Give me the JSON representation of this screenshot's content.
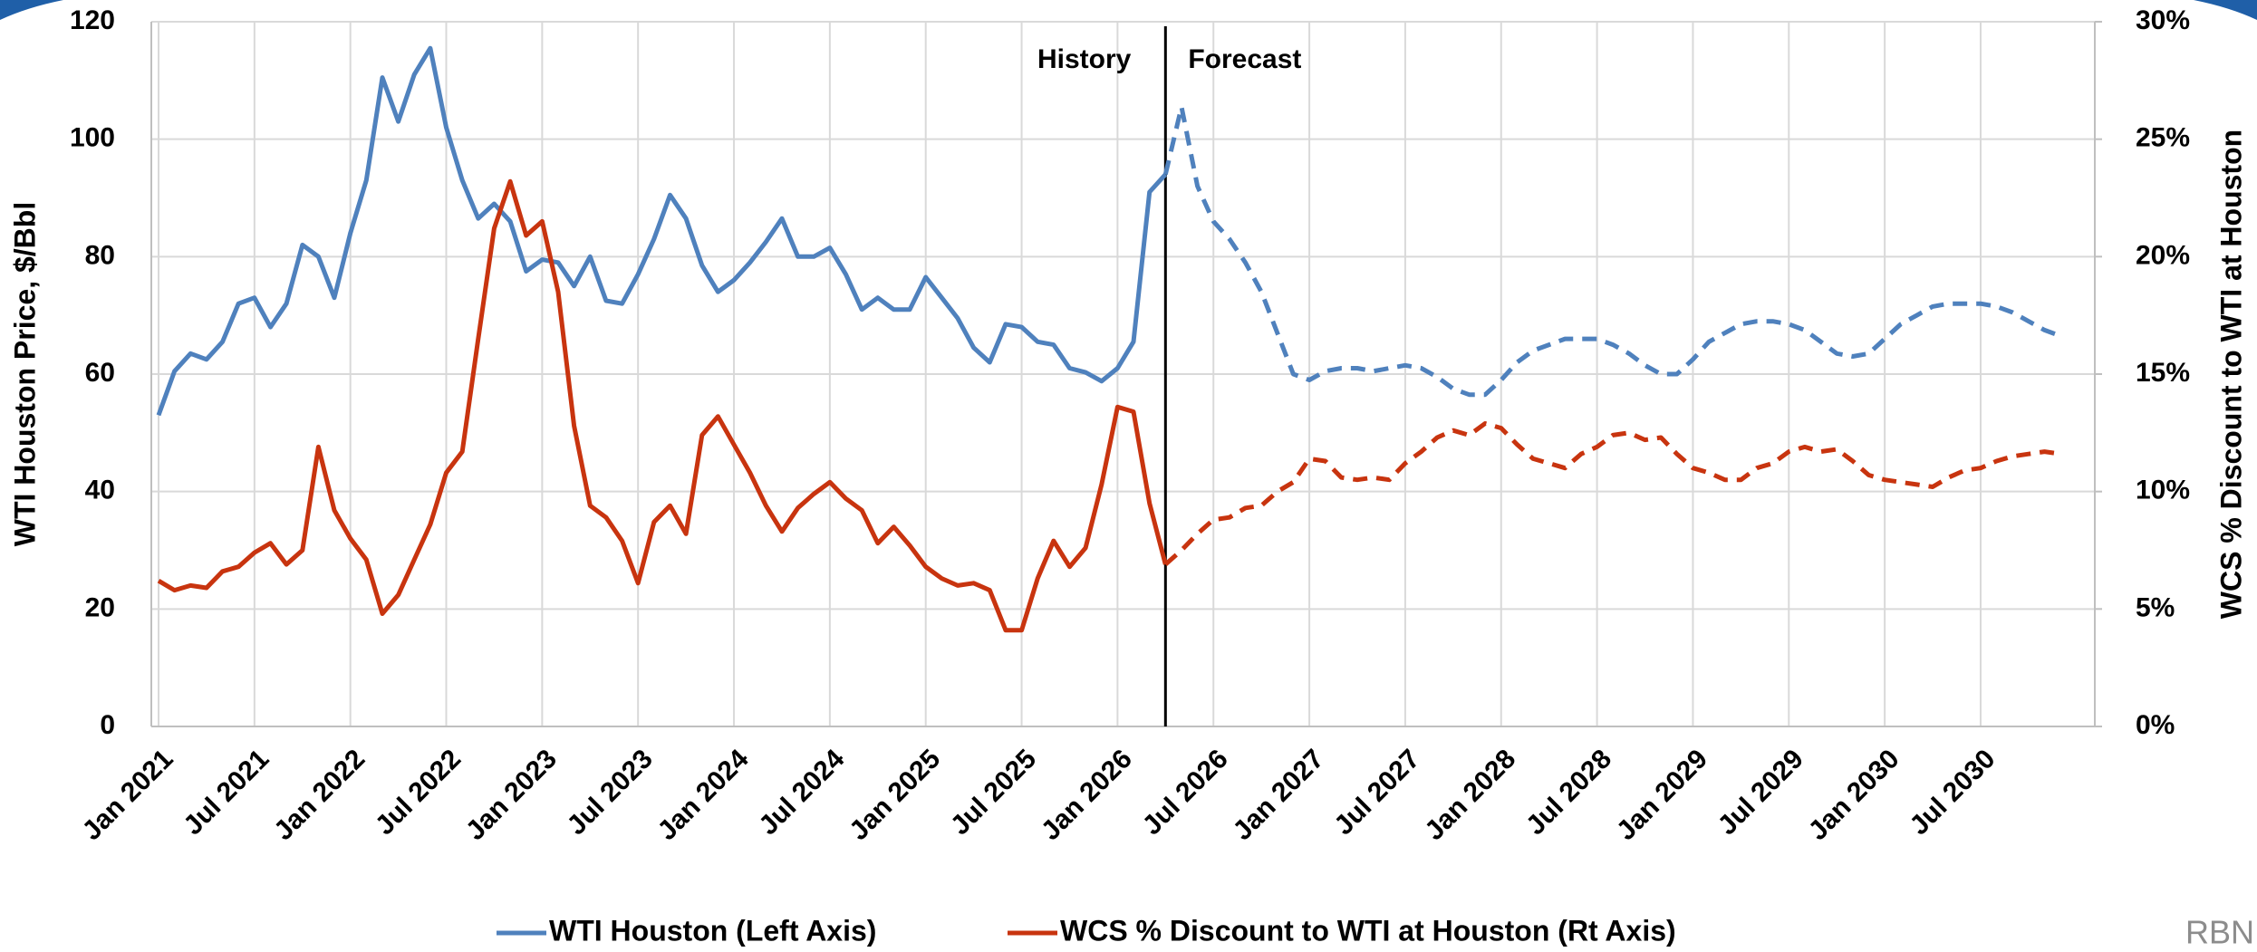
{
  "chart_data": {
    "type": "line",
    "ylabel": "WTI Houston Price, $/Bbl",
    "y2label": "WCS % Discount to WTI at Houston",
    "annotations": [
      "History",
      "Forecast"
    ],
    "divider_index": 63,
    "logo": "RBN",
    "categories": [
      "Jan 2021",
      null,
      null,
      null,
      null,
      null,
      "Jul 2021",
      null,
      null,
      null,
      null,
      null,
      "Jan 2022",
      null,
      null,
      null,
      null,
      null,
      "Jul 2022",
      null,
      null,
      null,
      null,
      null,
      "Jan 2023",
      null,
      null,
      null,
      null,
      null,
      "Jul 2023",
      null,
      null,
      null,
      null,
      null,
      "Jan 2024",
      null,
      null,
      null,
      null,
      null,
      "Jul 2024",
      null,
      null,
      null,
      null,
      null,
      "Jan 2025",
      null,
      null,
      null,
      null,
      null,
      "Jul 2025",
      null,
      null,
      null,
      null,
      null,
      "Jan 2026",
      null,
      null,
      null,
      null,
      null,
      "Jul 2026",
      null,
      null,
      null,
      null,
      null,
      "Jan 2027",
      null,
      null,
      null,
      null,
      null,
      "Jul 2027",
      null,
      null,
      null,
      null,
      null,
      "Jan 2028",
      null,
      null,
      null,
      null,
      null,
      "Jul 2028",
      null,
      null,
      null,
      null,
      null,
      "Jan 2029",
      null,
      null,
      null,
      null,
      null,
      "Jul 2029",
      null,
      null,
      null,
      null,
      null,
      "Jan 2030",
      null,
      null,
      null,
      null,
      null,
      "Jul 2030",
      null,
      null,
      null,
      null,
      null
    ],
    "series": [
      {
        "name": "WTI Houston (Left Axis)",
        "color": "#4f81bd",
        "axis": "y",
        "values": [
          53,
          60.5,
          63.5,
          62.5,
          65.5,
          72,
          73,
          68,
          72,
          82,
          80,
          73,
          84,
          93,
          110.5,
          103,
          111,
          115.5,
          102,
          93,
          86.5,
          89,
          86,
          77.5,
          79.5,
          79,
          75,
          80,
          72.5,
          72,
          77,
          83,
          90.5,
          86.5,
          78.5,
          74,
          76,
          79,
          82.5,
          86.5,
          80,
          80,
          81.5,
          77,
          71,
          73,
          71,
          71,
          76.5,
          73,
          69.5,
          64.5,
          62,
          68.5,
          68,
          65.5,
          65,
          61,
          60.3,
          58.8,
          61,
          65.5,
          91,
          94,
          105.5,
          92,
          86,
          83,
          79,
          74,
          67,
          60,
          59,
          60.5,
          61,
          61,
          60.5,
          61,
          61.5,
          61,
          59.5,
          57.5,
          56.5,
          56.5,
          59,
          62,
          64,
          65,
          66,
          66,
          66,
          65,
          63.5,
          61.5,
          60,
          60,
          62.5,
          65.5,
          67,
          68.5,
          69,
          69,
          68.5,
          67.5,
          65.5,
          63.5,
          63,
          63.5,
          66,
          68.5,
          70,
          71.5,
          72,
          72,
          72,
          71.5,
          70.5,
          69,
          67.5,
          66.5
        ]
      },
      {
        "name": "WCS % Discount to WTI at Houston (Rt Axis)",
        "color": "#c8340f",
        "axis": "y2",
        "values": [
          6.2,
          5.8,
          6.0,
          5.9,
          6.6,
          6.8,
          7.4,
          7.8,
          6.9,
          7.5,
          11.9,
          9.2,
          8.0,
          7.1,
          4.8,
          5.6,
          7.1,
          8.6,
          10.8,
          11.7,
          16.5,
          21.2,
          23.2,
          20.9,
          21.5,
          18.5,
          12.8,
          9.4,
          8.9,
          7.9,
          6.1,
          8.7,
          9.4,
          8.2,
          12.4,
          13.2,
          12.0,
          10.8,
          9.4,
          8.3,
          9.3,
          9.9,
          10.4,
          9.7,
          9.2,
          7.8,
          8.5,
          7.7,
          6.8,
          6.3,
          6.0,
          6.1,
          5.8,
          4.1,
          4.1,
          6.3,
          7.9,
          6.8,
          7.6,
          10.3,
          13.6,
          13.4,
          9.5,
          6.9,
          7.5,
          8.2,
          8.8,
          8.9,
          9.3,
          9.4,
          10.0,
          10.4,
          11.4,
          11.3,
          10.6,
          10.5,
          10.6,
          10.5,
          11.2,
          11.7,
          12.3,
          12.6,
          12.4,
          12.9,
          12.7,
          12.0,
          11.4,
          11.2,
          11.0,
          11.6,
          11.9,
          12.4,
          12.5,
          12.2,
          12.3,
          11.6,
          11.0,
          10.8,
          10.5,
          10.5,
          11.0,
          11.2,
          11.7,
          11.9,
          11.7,
          11.8,
          11.3,
          10.7,
          10.5,
          10.4,
          10.3,
          10.2,
          10.6,
          10.9,
          11.0,
          11.3,
          11.5,
          11.6,
          11.7,
          11.6
        ]
      }
    ],
    "ylim": [
      0,
      120
    ],
    "yticks": [
      0,
      20,
      40,
      60,
      80,
      100,
      120
    ],
    "y2lim": [
      0,
      30
    ],
    "y2ticks": [
      {
        "value": 0,
        "label": "0%"
      },
      {
        "value": 5,
        "label": "5%"
      },
      {
        "value": 10,
        "label": "10%"
      },
      {
        "value": 15,
        "label": "15%"
      },
      {
        "value": 20,
        "label": "20%"
      },
      {
        "value": 25,
        "label": "25%"
      },
      {
        "value": 30,
        "label": "30%"
      }
    ],
    "grid": true
  }
}
